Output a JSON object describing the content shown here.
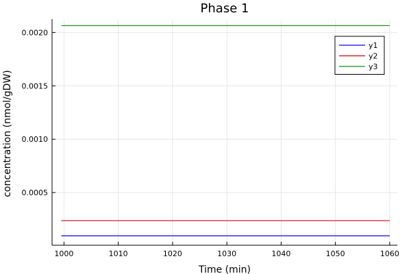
{
  "chart_data": {
    "type": "line",
    "title": "Phase 1",
    "xlabel": "Time (min)",
    "ylabel": "concentration (nmol/gDW)",
    "xlim": [
      997.8,
      1061.4
    ],
    "ylim": [
      6.4e-06,
      0.0021245
    ],
    "x_ticks": [
      1000,
      1010,
      1020,
      1030,
      1040,
      1050,
      1060
    ],
    "x_tick_labels": [
      "1000",
      "1010",
      "1020",
      "1030",
      "1040",
      "1050",
      "1060"
    ],
    "y_ticks": [
      0.0005,
      0.001,
      0.0015,
      0.002
    ],
    "y_tick_labels": [
      "0.0005",
      "0.0010",
      "0.0015",
      "0.0020"
    ],
    "grid": true,
    "legend_position": "top-right",
    "series": [
      {
        "name": "y1",
        "color": "#0000ff",
        "x": [
          999.5,
          1060
        ],
        "values": [
          9.48e-05,
          9.48e-05
        ]
      },
      {
        "name": "y2",
        "color": "#e00000",
        "x": [
          999.5,
          1060
        ],
        "values": [
          0.000237,
          0.000237
        ]
      },
      {
        "name": "y3",
        "color": "#009900",
        "x": [
          999.5,
          1060
        ],
        "values": [
          0.002064,
          0.002064
        ]
      }
    ]
  }
}
